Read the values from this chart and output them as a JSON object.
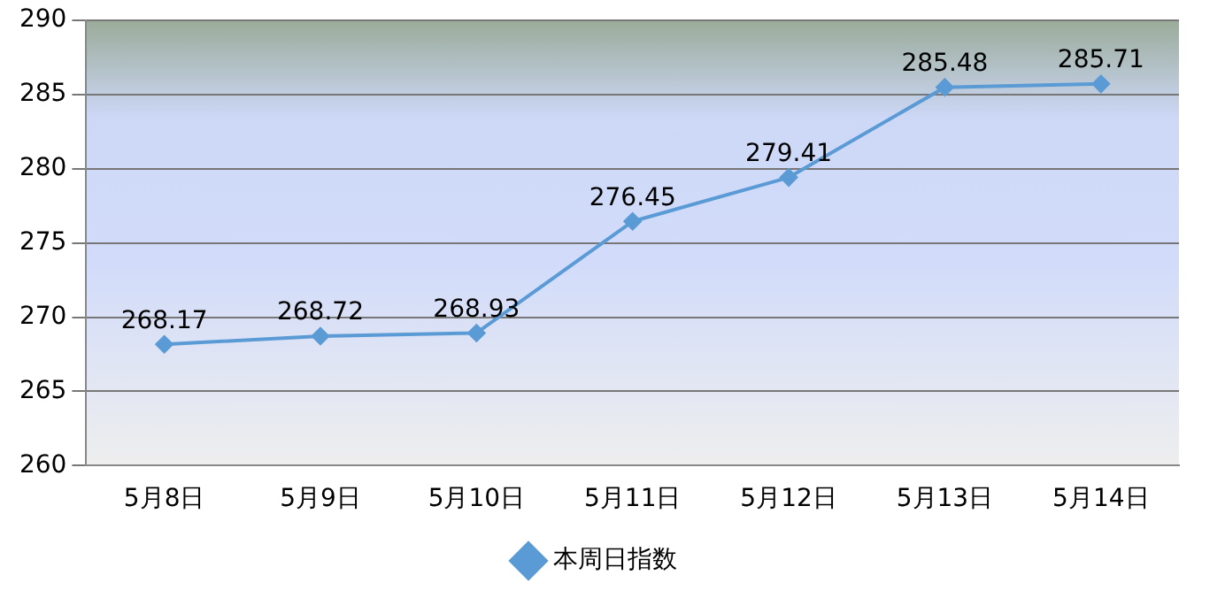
{
  "chart_data": {
    "type": "line",
    "categories": [
      "5月8日",
      "5月9日",
      "5月10日",
      "5月11日",
      "5月12日",
      "5月13日",
      "5月14日"
    ],
    "series": [
      {
        "name": "本周日指数",
        "color": "#5b9bd5",
        "values": [
          268.17,
          268.72,
          268.93,
          276.45,
          279.41,
          285.48,
          285.71
        ]
      }
    ],
    "ylim": [
      260,
      290
    ],
    "yticks": [
      260,
      265,
      270,
      275,
      280,
      285,
      290
    ],
    "grid": "y",
    "legend": "bottom",
    "marker": "diamond",
    "data_labels": true
  }
}
